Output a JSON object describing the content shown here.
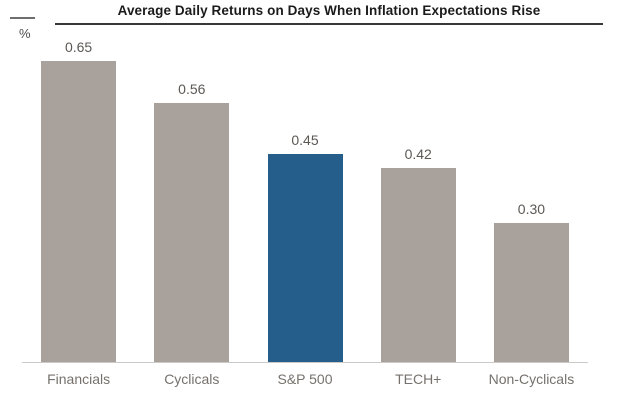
{
  "header": {
    "title": "Average Daily Returns on Days When Inflation Expectations Rise",
    "y_axis_unit": "%"
  },
  "chart_data": {
    "type": "bar",
    "title": "Average Daily Returns on Days When Inflation Expectations Rise",
    "categories": [
      "Financials",
      "Cyclicals",
      "S&P 500",
      "TECH+",
      "Non-Cyclicals"
    ],
    "values": [
      0.65,
      0.56,
      0.45,
      0.42,
      0.3
    ],
    "value_labels": [
      "0.65",
      "0.56",
      "0.45",
      "0.42",
      "0.30"
    ],
    "xlabel": "",
    "ylabel": "%",
    "ylim": [
      0,
      0.72
    ],
    "grid": false,
    "legend": "none",
    "highlight_index": 2,
    "colors": {
      "default_bar": "#a9a29c",
      "highlight_bar": "#255e8b",
      "title_text": "#1b1b1b",
      "value_label_text": "#5c5854",
      "category_label_text": "#76716c",
      "baseline": "#cccac7"
    }
  }
}
